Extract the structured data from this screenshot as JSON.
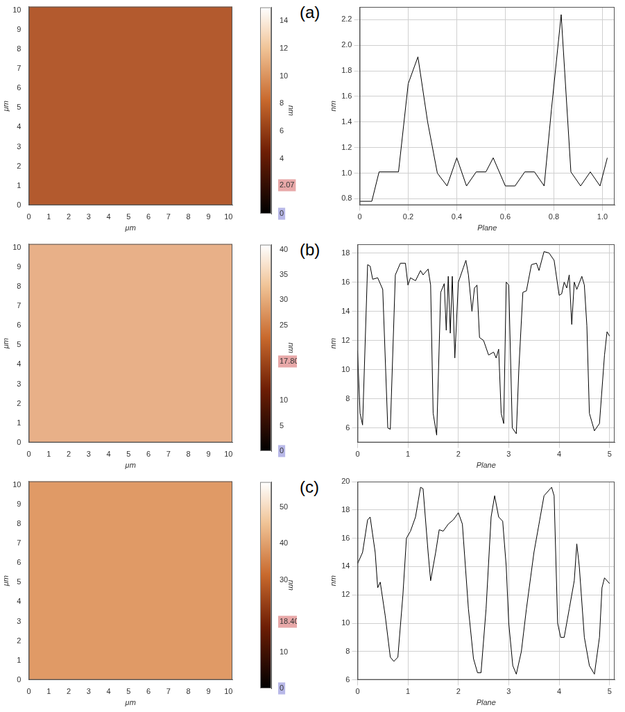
{
  "chart_data": [
    {
      "type": "image",
      "color": "#b35a2e",
      "x_label": "μm",
      "y_label": "μm",
      "xlim": [
        0,
        10.2
      ],
      "ylim": [
        0,
        10.2
      ],
      "xticks": [
        0,
        1,
        2,
        3,
        4,
        5,
        6,
        7,
        8,
        9,
        10
      ],
      "yticks": [
        0,
        1,
        2,
        3,
        4,
        5,
        6,
        7,
        8,
        9,
        10
      ],
      "colorbar": {
        "label": "nm",
        "range": [
          0,
          15
        ],
        "ticks": [
          0,
          2.07,
          4,
          6,
          8,
          10,
          12,
          14
        ],
        "marker": 2.07
      }
    },
    {
      "type": "line",
      "title": "(a)",
      "x_label": "Plane",
      "y_label": "nm",
      "grid": true,
      "color": "#000000",
      "xlim": [
        0,
        1.05
      ],
      "ylim": [
        0.75,
        2.3
      ],
      "xticks": [
        0,
        {
          "value": 0.2,
          "label": "0.2"
        },
        {
          "value": 0.4,
          "label": "0.4"
        },
        {
          "value": 0.6,
          "label": "0.6"
        },
        {
          "value": 0.8,
          "label": "0.8"
        },
        {
          "value": 1,
          "label": "1.0"
        }
      ],
      "yticks": [
        {
          "value": 0.8,
          "label": "0.8"
        },
        {
          "value": 1,
          "label": "1.0"
        },
        {
          "value": 1.2,
          "label": "1.2"
        },
        {
          "value": 1.4,
          "label": "1.4"
        },
        {
          "value": 1.6,
          "label": "1.6"
        },
        {
          "value": 1.8,
          "label": "1.8"
        },
        {
          "value": 2,
          "label": "2.0"
        },
        {
          "value": 2.2,
          "label": "2.2"
        }
      ],
      "x": [
        0,
        0.05,
        0.08,
        0.16,
        0.2,
        0.24,
        0.28,
        0.32,
        0.36,
        0.4,
        0.44,
        0.48,
        0.52,
        0.55,
        0.6,
        0.64,
        0.68,
        0.72,
        0.76,
        0.79,
        0.83,
        0.87,
        0.91,
        0.95,
        0.99,
        1.02
      ],
      "values": [
        0.78,
        0.78,
        1.01,
        1.01,
        1.7,
        1.91,
        1.4,
        1.0,
        0.9,
        1.12,
        0.9,
        1.01,
        1.01,
        1.12,
        0.9,
        0.9,
        1.01,
        1.01,
        0.9,
        1.5,
        2.24,
        1.01,
        0.9,
        1.01,
        0.9,
        1.12
      ]
    },
    {
      "type": "image",
      "color": "#e8b088",
      "x_label": "μm",
      "y_label": "μm",
      "xlim": [
        0,
        10.2
      ],
      "ylim": [
        0,
        10.2
      ],
      "xticks": [
        0,
        1,
        2,
        3,
        4,
        5,
        6,
        7,
        8,
        9,
        10
      ],
      "yticks": [
        0,
        1,
        2,
        3,
        4,
        5,
        6,
        7,
        8,
        9,
        10
      ],
      "colorbar": {
        "label": "nm",
        "range": [
          0,
          41
        ],
        "ticks": [
          0,
          5,
          10,
          {
            "value": 17.8,
            "label": "17.80"
          },
          25,
          30,
          35,
          40
        ],
        "marker": 17.8
      }
    },
    {
      "type": "line",
      "title": "(b)",
      "x_label": "Plane",
      "y_label": "nm",
      "grid": true,
      "color": "#000000",
      "xlim": [
        0,
        5.1
      ],
      "ylim": [
        5,
        18.6
      ],
      "xticks": [
        0,
        1,
        2,
        3,
        4,
        5
      ],
      "yticks": [
        6,
        8,
        10,
        12,
        14,
        16,
        18
      ],
      "x": [
        0,
        0.05,
        0.1,
        0.2,
        0.25,
        0.3,
        0.4,
        0.5,
        0.6,
        0.65,
        0.75,
        0.85,
        0.95,
        1.0,
        1.05,
        1.15,
        1.25,
        1.3,
        1.4,
        1.45,
        1.5,
        1.57,
        1.65,
        1.72,
        1.76,
        1.8,
        1.84,
        1.88,
        1.93,
        2.0,
        2.1,
        2.15,
        2.2,
        2.27,
        2.32,
        2.37,
        2.42,
        2.5,
        2.6,
        2.7,
        2.75,
        2.8,
        2.85,
        2.9,
        2.95,
        3.0,
        3.07,
        3.15,
        3.2,
        3.28,
        3.35,
        3.45,
        3.55,
        3.6,
        3.7,
        3.8,
        3.9,
        4.0,
        4.05,
        4.1,
        4.15,
        4.2,
        4.25,
        4.3,
        4.35,
        4.45,
        4.5,
        4.55,
        4.6,
        4.7,
        4.8,
        4.9,
        4.95,
        5.0
      ],
      "values": [
        11.3,
        7,
        6.2,
        17.2,
        17.1,
        16.2,
        16.3,
        15.5,
        6,
        5.9,
        16.5,
        17.3,
        17.3,
        15.8,
        16.3,
        16.1,
        16.8,
        16.5,
        16.9,
        15.8,
        7,
        5.5,
        15.3,
        15.9,
        12.7,
        16.4,
        12.5,
        16.4,
        10.8,
        16,
        17,
        17.5,
        16.5,
        14,
        15.6,
        15.8,
        12.2,
        12,
        11,
        11.2,
        10.8,
        11.4,
        7,
        6.3,
        16,
        15.8,
        6,
        5.6,
        10,
        15.3,
        15.4,
        17.2,
        17.3,
        16.8,
        18.1,
        18,
        17.5,
        15.1,
        15.2,
        16,
        15.6,
        16.5,
        13.1,
        16,
        15.5,
        16.4,
        15.8,
        13,
        7,
        5.8,
        6.3,
        11,
        12.6,
        12.3
      ]
    },
    {
      "type": "image",
      "color": "#e09a66",
      "x_label": "μm",
      "y_label": "μm",
      "xlim": [
        0,
        10.2
      ],
      "ylim": [
        0,
        10.2
      ],
      "xticks": [
        0,
        1,
        2,
        3,
        4,
        5,
        6,
        7,
        8,
        9,
        10
      ],
      "yticks": [
        0,
        1,
        2,
        3,
        4,
        5,
        6,
        7,
        8,
        9,
        10
      ],
      "colorbar": {
        "label": "nm",
        "range": [
          0,
          57
        ],
        "ticks": [
          0,
          10,
          {
            "value": 18.4,
            "label": "18.40"
          },
          30,
          40,
          50
        ],
        "marker": 18.4
      }
    },
    {
      "type": "line",
      "title": "(c)",
      "x_label": "Plane",
      "y_label": "nm",
      "grid": true,
      "color": "#000000",
      "xlim": [
        0,
        5.1
      ],
      "ylim": [
        6,
        20
      ],
      "xticks": [
        0,
        1,
        2,
        3,
        4,
        5
      ],
      "yticks": [
        6,
        8,
        10,
        12,
        14,
        16,
        18,
        20
      ],
      "x": [
        0,
        0.1,
        0.2,
        0.25,
        0.35,
        0.4,
        0.45,
        0.55,
        0.65,
        0.72,
        0.8,
        0.9,
        0.97,
        1.05,
        1.15,
        1.25,
        1.3,
        1.4,
        1.45,
        1.55,
        1.62,
        1.7,
        1.8,
        1.9,
        2.0,
        2.08,
        2.2,
        2.3,
        2.38,
        2.45,
        2.55,
        2.65,
        2.72,
        2.8,
        2.88,
        2.95,
        3.0,
        3.08,
        3.15,
        3.25,
        3.35,
        3.5,
        3.6,
        3.7,
        3.85,
        3.9,
        3.97,
        4.03,
        4.1,
        4.2,
        4.3,
        4.35,
        4.4,
        4.5,
        4.6,
        4.7,
        4.8,
        4.85,
        4.9,
        5.0
      ],
      "values": [
        14.2,
        15,
        17.3,
        17.5,
        15,
        12.5,
        12.9,
        10.5,
        7.6,
        7.3,
        7.6,
        12,
        16,
        16.5,
        17.5,
        19.6,
        19.5,
        15,
        13,
        15,
        16.6,
        16.5,
        17,
        17.3,
        17.8,
        17,
        11,
        7.5,
        6.5,
        6.5,
        11,
        17.5,
        19,
        17.5,
        17.2,
        14,
        10,
        7,
        6.4,
        8,
        11,
        15,
        17,
        19,
        19.6,
        19,
        10,
        9,
        9,
        11,
        13,
        15.6,
        14,
        9,
        7,
        6.4,
        9,
        12.5,
        13.2,
        12.8
      ]
    }
  ]
}
